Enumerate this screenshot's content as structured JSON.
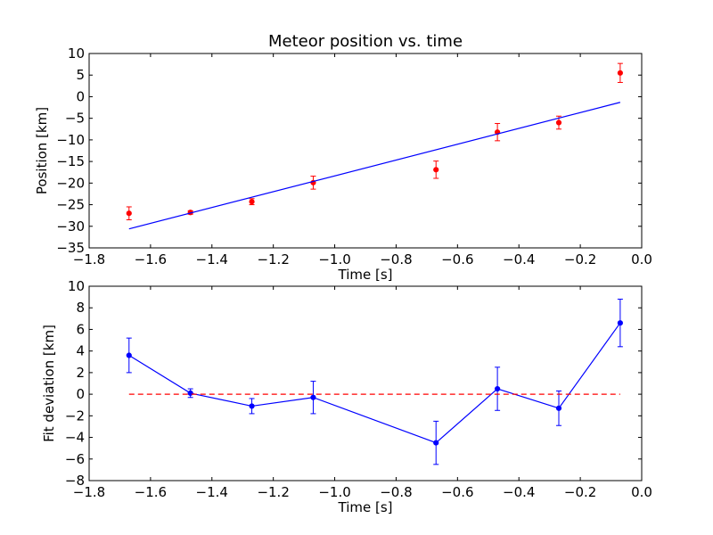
{
  "figure": {
    "title": "Meteor position vs. time"
  },
  "chart_data": [
    {
      "type": "scatter",
      "title": "Meteor position vs. time",
      "xlabel": "Time [s]",
      "ylabel": "Position [km]",
      "xlim": [
        -1.8,
        0.0
      ],
      "ylim": [
        -35,
        10
      ],
      "xticks": [
        "−1.8",
        "−1.6",
        "−1.4",
        "−1.2",
        "−1.0",
        "−0.8",
        "−0.6",
        "−0.4",
        "−0.2",
        "0.0"
      ],
      "xtick_values": [
        -1.8,
        -1.6,
        -1.4,
        -1.2,
        -1.0,
        -0.8,
        -0.6,
        -0.4,
        -0.2,
        0.0
      ],
      "yticks": [
        "10",
        "5",
        "0",
        "−5",
        "−10",
        "−15",
        "−20",
        "−25",
        "−30",
        "−35"
      ],
      "ytick_values": [
        10,
        5,
        0,
        -5,
        -10,
        -15,
        -20,
        -25,
        -30,
        -35
      ],
      "grid": false,
      "series": [
        {
          "kind": "errorbar-points",
          "color": "#ff0000",
          "x": [
            -1.67,
            -1.47,
            -1.27,
            -1.07,
            -0.67,
            -0.47,
            -0.27,
            -0.07
          ],
          "y": [
            -27.0,
            -26.8,
            -24.3,
            -19.9,
            -16.9,
            -8.2,
            -6.0,
            5.5
          ],
          "yerr": [
            1.5,
            0.4,
            0.7,
            1.5,
            2.0,
            2.0,
            1.5,
            2.2
          ]
        },
        {
          "kind": "fit-line",
          "color": "#0000ff",
          "x": [
            -1.67,
            -0.07
          ],
          "y": [
            -30.6,
            -1.3
          ]
        }
      ]
    },
    {
      "type": "line",
      "xlabel": "Time [s]",
      "ylabel": "Fit deviation [km]",
      "xlim": [
        -1.8,
        0.0
      ],
      "ylim": [
        -8,
        10
      ],
      "xticks": [
        "−1.8",
        "−1.6",
        "−1.4",
        "−1.2",
        "−1.0",
        "−0.8",
        "−0.6",
        "−0.4",
        "−0.2",
        "0.0"
      ],
      "xtick_values": [
        -1.8,
        -1.6,
        -1.4,
        -1.2,
        -1.0,
        -0.8,
        -0.6,
        -0.4,
        -0.2,
        0.0
      ],
      "yticks": [
        "10",
        "8",
        "6",
        "4",
        "2",
        "0",
        "−2",
        "−4",
        "−6",
        "−8"
      ],
      "ytick_values": [
        10,
        8,
        6,
        4,
        2,
        0,
        -2,
        -4,
        -6,
        -8
      ],
      "grid": false,
      "series": [
        {
          "kind": "errorbar-line",
          "color": "#0000ff",
          "x": [
            -1.67,
            -1.47,
            -1.27,
            -1.07,
            -0.67,
            -0.47,
            -0.27,
            -0.07
          ],
          "y": [
            3.6,
            0.1,
            -1.1,
            -0.3,
            -4.5,
            0.5,
            -1.3,
            6.6
          ],
          "yerr": [
            1.6,
            0.4,
            0.7,
            1.5,
            2.0,
            2.0,
            1.6,
            2.2
          ]
        },
        {
          "kind": "reference-line",
          "color": "#ff0000",
          "style": "dashed",
          "x": [
            -1.67,
            -0.07
          ],
          "y": [
            0,
            0
          ]
        }
      ]
    }
  ]
}
